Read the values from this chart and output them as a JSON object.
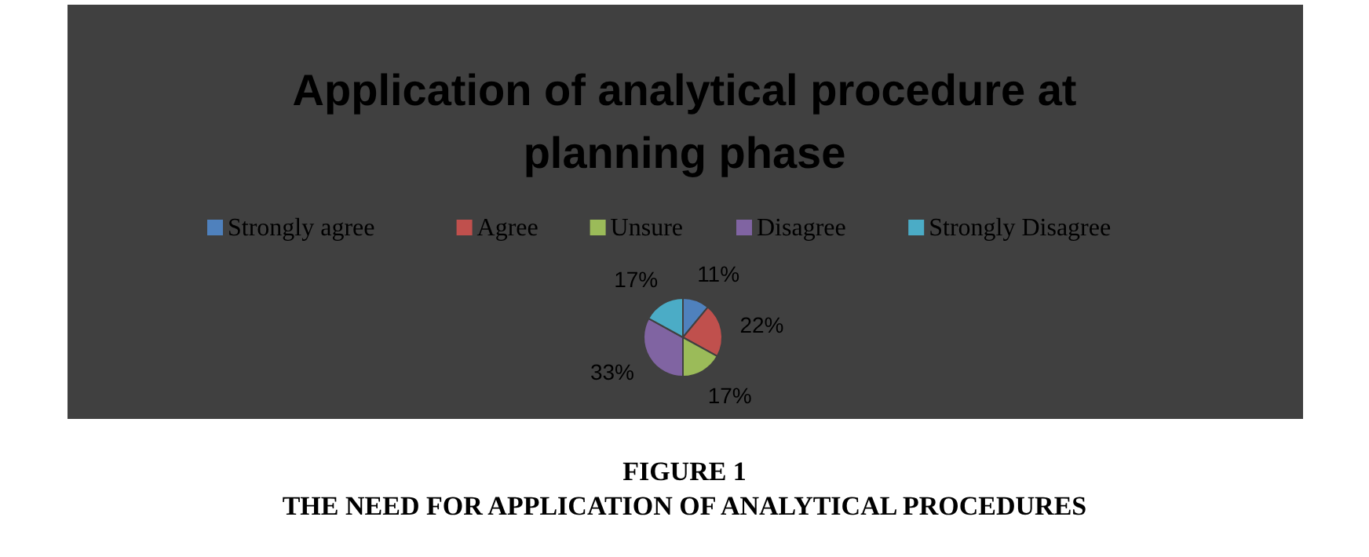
{
  "chart_data": {
    "type": "pie",
    "title": "Application of analytical procedure at planning phase",
    "categories": [
      "Strongly agree",
      "Agree",
      "Unsure",
      "Disagree",
      "Strongly Disagree"
    ],
    "values": [
      11,
      22,
      17,
      33,
      17
    ],
    "colors": [
      "#4f81bd",
      "#c0504d",
      "#9bbb59",
      "#8064a2",
      "#4bacc6"
    ],
    "value_labels": [
      "11%",
      "22%",
      "17%",
      "33%",
      "17%"
    ],
    "legend": "top",
    "annotations": [
      "FIGURE 1",
      "THE NEED FOR APPLICATION OF ANALYTICAL PROCEDURES"
    ]
  }
}
